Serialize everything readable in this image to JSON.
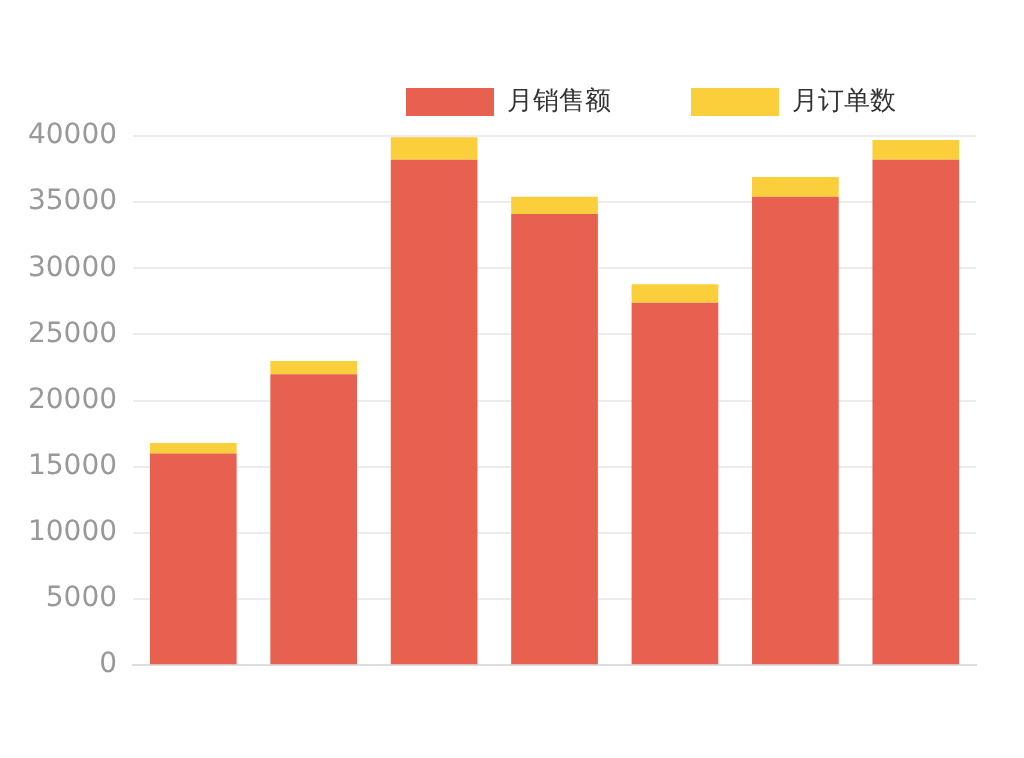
{
  "chart_data": {
    "type": "bar",
    "stacked": true,
    "categories": [
      null,
      null,
      null,
      null,
      null,
      null,
      null
    ],
    "series": [
      {
        "name": "月销售额",
        "color": "#e8604f",
        "values": [
          16000,
          22000,
          38200,
          34100,
          27400,
          35400,
          38200
        ]
      },
      {
        "name": "月订单数",
        "color": "#fbcf3c",
        "values": [
          800,
          1000,
          1700,
          1300,
          1400,
          1500,
          1500
        ]
      }
    ],
    "ylim": [
      0,
      40000
    ],
    "yticks": [
      0,
      5000,
      10000,
      15000,
      20000,
      25000,
      30000,
      35000,
      40000
    ],
    "grid": "y",
    "legend": "top right"
  }
}
